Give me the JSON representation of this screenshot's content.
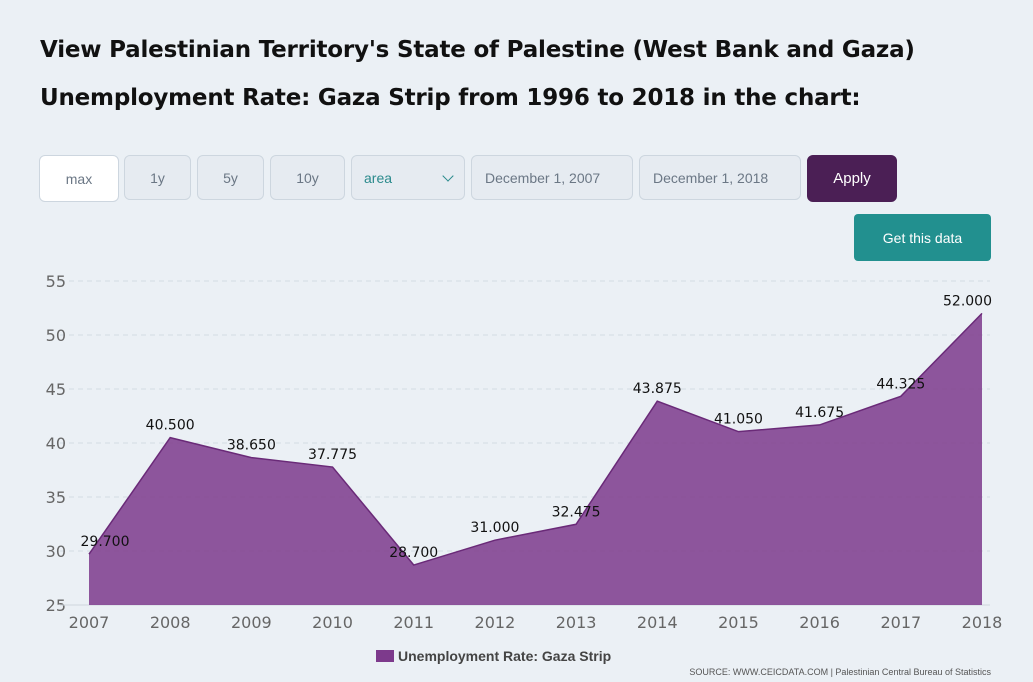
{
  "page": {
    "title": "View Palestinian Territory's State of Palestine (West Bank and Gaza) Unemployment Rate: Gaza Strip from 1996 to 2018 in the chart:"
  },
  "controls": {
    "range_buttons": [
      "max",
      "1y",
      "5y",
      "10y"
    ],
    "chart_type": "area",
    "date_from": "December 1, 2007",
    "date_to": "December 1, 2018",
    "apply_label": "Apply",
    "get_data_label": "Get this data"
  },
  "colors": {
    "area_fill": "#7d3a8c",
    "line": "#6a2a78",
    "accent_teal": "#22908f",
    "apply_bg": "#4b1f55"
  },
  "chart_data": {
    "type": "area",
    "title": "",
    "xlabel": "",
    "ylabel": "",
    "categories": [
      "2007",
      "2008",
      "2009",
      "2010",
      "2011",
      "2012",
      "2013",
      "2014",
      "2015",
      "2016",
      "2017",
      "2018"
    ],
    "series": [
      {
        "name": "Unemployment Rate: Gaza Strip",
        "values": [
          29.7,
          40.5,
          38.65,
          37.775,
          28.7,
          31.0,
          32.475,
          43.875,
          41.05,
          41.675,
          44.325,
          52.0
        ],
        "labels": [
          "29.700",
          "40.500",
          "38.650",
          "37.775",
          "28.700",
          "31.000",
          "32.475",
          "43.875",
          "41.050",
          "41.675",
          "44.325",
          "52.000"
        ]
      }
    ],
    "y_ticks": [
      "25",
      "30",
      "35",
      "40",
      "45",
      "50",
      "55"
    ],
    "ylim": [
      25,
      55
    ],
    "grid": true,
    "legend": "bottom-center",
    "source": "SOURCE: WWW.CEICDATA.COM | Palestinian Central Bureau of Statistics"
  }
}
